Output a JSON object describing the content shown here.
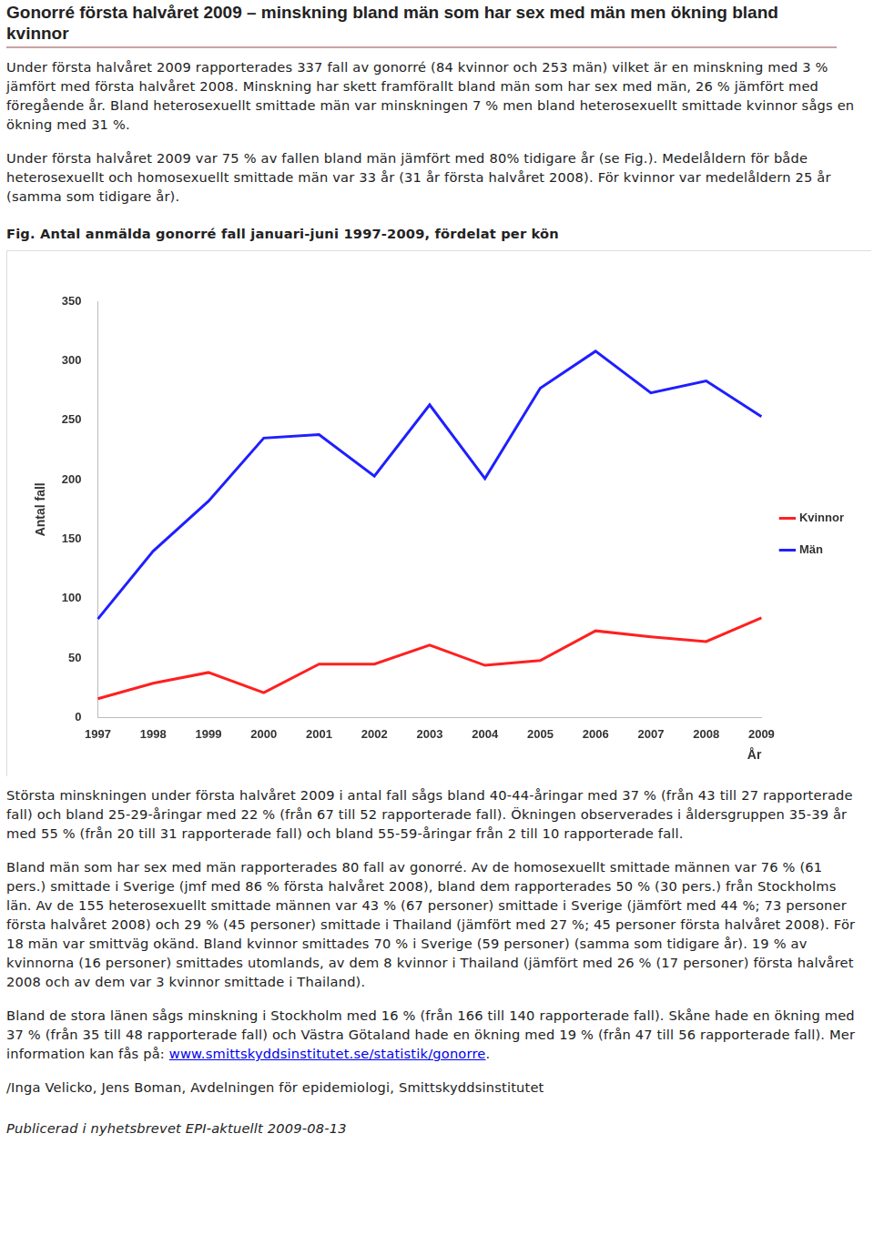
{
  "title": "Gonorré första halvåret 2009 – minskning bland män som har sex med män men ökning bland kvinnor",
  "paragraphs_before": [
    "Under första halvåret 2009 rapporterades 337 fall av gonorré (84 kvinnor och 253 män) vilket är en minskning med 3 % jämfört med första halvåret 2008. Minskning har skett framförallt bland män som har sex med män, 26 % jämfört med föregående år. Bland heterosexuellt smittade män var minskningen 7 % men bland heterosexuellt smittade kvinnor sågs en ökning med 31 %.",
    "Under första halvåret 2009 var 75 % av fallen bland män jämfört med 80% tidigare år (se Fig.). Medelåldern för både heterosexuellt och homosexuellt smittade män var 33 år (31 år första halvåret 2008). För kvinnor var medelåldern 25 år (samma som tidigare år)."
  ],
  "figure_caption": "Fig. Antal anmälda gonorré fall januari-juni 1997-2009, fördelat per kön",
  "chart_data": {
    "type": "line",
    "x_label": "År",
    "y_label": "Antal fall",
    "categories": [
      "1997",
      "1998",
      "1999",
      "2000",
      "2001",
      "2002",
      "2003",
      "2004",
      "2005",
      "2006",
      "2007",
      "2008",
      "2009"
    ],
    "series": [
      {
        "name": "Kvinnor",
        "color": "#ff2020",
        "values": [
          16,
          29,
          38,
          21,
          45,
          45,
          61,
          44,
          48,
          73,
          68,
          64,
          84
        ]
      },
      {
        "name": "Män",
        "color": "#1f1fff",
        "values": [
          83,
          140,
          182,
          235,
          238,
          203,
          263,
          201,
          277,
          308,
          273,
          283,
          253
        ]
      }
    ],
    "ylim": [
      0,
      350
    ],
    "yticks": [
      0,
      50,
      100,
      150,
      200,
      250,
      300,
      350
    ],
    "grid": false,
    "legend": "right"
  },
  "paragraphs_after": [
    "Största minskningen under första halvåret 2009 i antal fall sågs bland 40-44-åringar med 37 % (från 43 till 27 rapporterade fall) och bland 25-29-åringar med 22 % (från 67 till 52 rapporterade fall). Ökningen observerades i åldersgruppen 35-39 år med 55 % (från 20 till 31 rapporterade fall) och bland 55-59-åringar från 2 till 10 rapporterade fall.",
    "Bland män som har sex med män rapporterades 80 fall av gonorré. Av de homosexuellt smittade männen var 76 % (61 pers.) smittade i Sverige (jmf med 86 % första halvåret 2008), bland dem rapporterades 50 % (30 pers.) från Stockholms län. Av de 155 heterosexuellt smittade männen var 43 % (67 personer) smittade i Sverige (jämfört med 44 %; 73 personer första halvåret 2008) och 29 % (45 personer) smittade i Thailand (jämfört med 27 %; 45 personer första halvåret 2008). För 18 män var smittväg okänd. Bland kvinnor smittades 70 % i Sverige (59 personer) (samma som tidigare år). 19 % av kvinnorna (16 personer) smittades utomlands, av dem 8 kvinnor i Thailand (jämfört med 26 % (17 personer) första halvåret 2008 och av dem var 3 kvinnor smittade i Thailand)."
  ],
  "last_paragraph": {
    "text": "Bland de stora länen sågs minskning i Stockholm med 16 % (från 166 till 140 rapporterade fall). Skåne hade en ökning med 37 % (från 35 till 48 rapporterade fall) och Västra Götaland hade en ökning med 19 % (från 47 till 56 rapporterade fall). Mer information kan fås på: ",
    "link": "www.smittskyddsinstitutet.se/statistik/gonorre",
    "suffix": "."
  },
  "authors": "/Inga Velicko, Jens Boman, Avdelningen för epidemiologi, Smittskyddsinstitutet",
  "footer": "Publicerad i nyhetsbrevet EPI-aktuellt 2009-08-13"
}
